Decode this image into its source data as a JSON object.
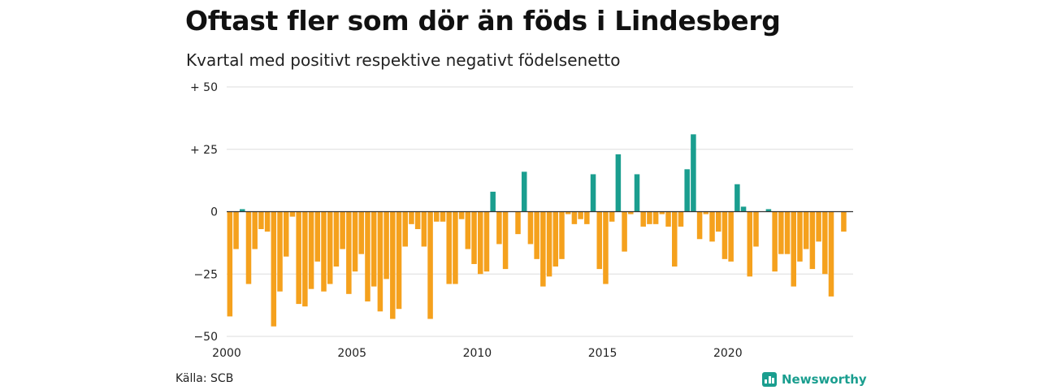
{
  "title": "Oftast fler som dör än föds i Lindesberg",
  "subtitle": "Kvartal med positivt respektive negativt födelsenetto",
  "source": "Källa: SCB",
  "brand": "Newsworthy",
  "colors": {
    "positive": "#1a9e8f",
    "negative": "#f5a11d",
    "grid": "#dddddd",
    "zero": "#333333"
  },
  "chart_data": {
    "type": "bar",
    "x_start": 2000,
    "periods_per_year": 4,
    "xlim": [
      2000,
      2025
    ],
    "ylim": [
      -50,
      50
    ],
    "yticks": [
      {
        "value": 50,
        "label": "+ 50"
      },
      {
        "value": 25,
        "label": "+ 25"
      },
      {
        "value": 0,
        "label": "0"
      },
      {
        "value": -25,
        "label": "−25"
      },
      {
        "value": -50,
        "label": "−50"
      }
    ],
    "xticks": [
      "2000",
      "2005",
      "2010",
      "2015",
      "2020"
    ],
    "grid": true,
    "values": [
      -42,
      -15,
      1,
      -29,
      -15,
      -7,
      -8,
      -46,
      -32,
      -18,
      -2,
      -37,
      -38,
      -31,
      -20,
      -32,
      -29,
      -22,
      -15,
      -33,
      -24,
      -17,
      -36,
      -30,
      -40,
      -27,
      -43,
      -39,
      -14,
      -5,
      -7,
      -14,
      -43,
      -4,
      -4,
      -29,
      -29,
      -3,
      -15,
      -21,
      -25,
      -24,
      8,
      -13,
      -23,
      0,
      -9,
      16,
      -13,
      -19,
      -30,
      -26,
      -22,
      -19,
      -1,
      -5,
      -3,
      -5,
      15,
      -23,
      -29,
      -4,
      23,
      -16,
      -1,
      15,
      -6,
      -5,
      -5,
      -1,
      -6,
      -22,
      -6,
      17,
      31,
      -11,
      -1,
      -12,
      -8,
      -19,
      -20,
      11,
      2,
      -26,
      -14,
      0,
      1,
      -24,
      -17,
      -17,
      -30,
      -20,
      -15,
      -23,
      -12,
      -25,
      -34,
      0,
      -8
    ]
  }
}
